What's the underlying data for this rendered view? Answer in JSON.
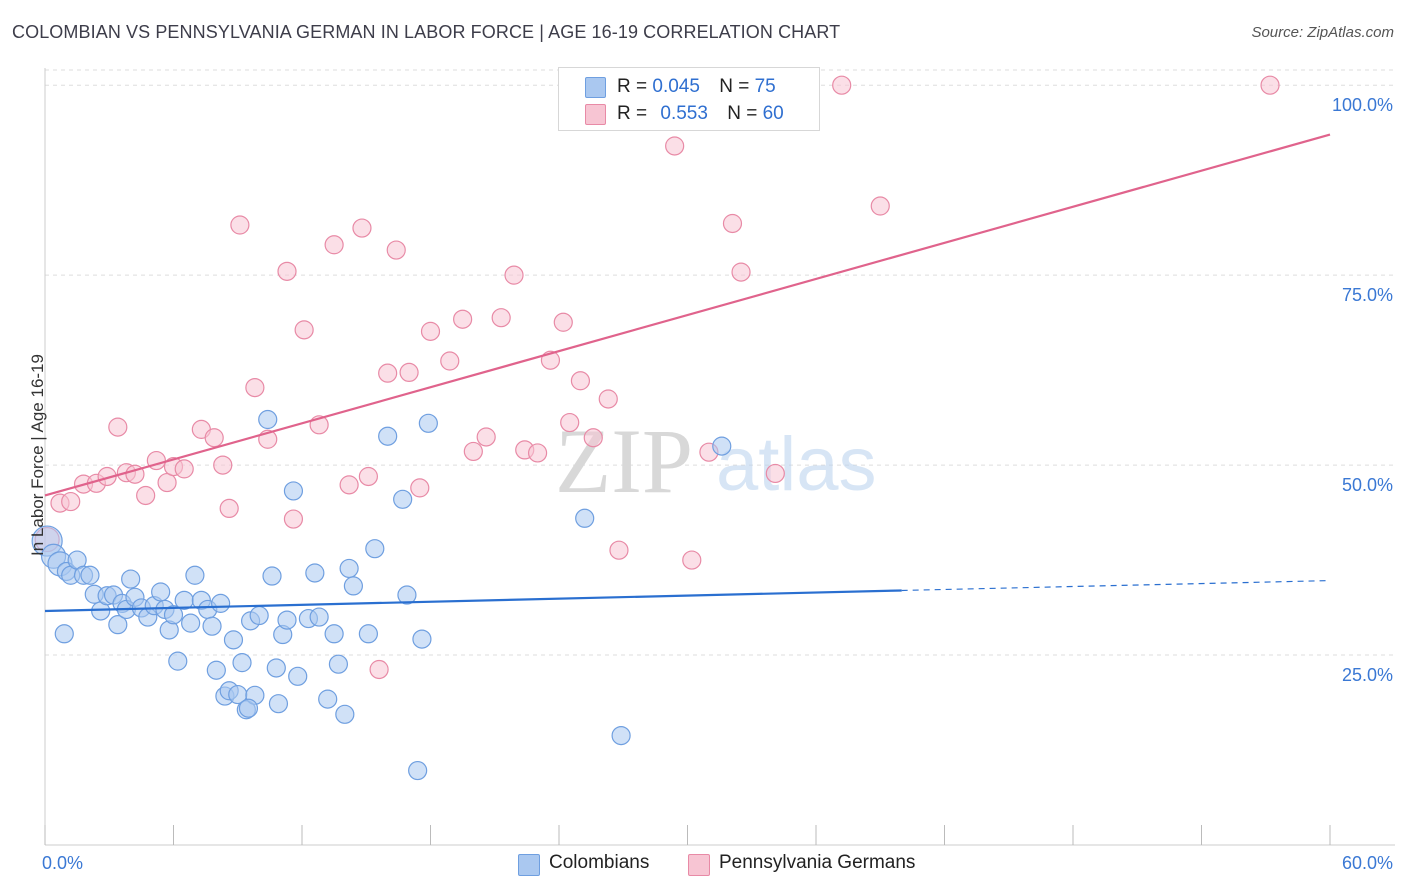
{
  "title": "COLOMBIAN VS PENNSYLVANIA GERMAN IN LABOR FORCE | AGE 16-19 CORRELATION CHART",
  "source": "Source: ZipAtlas.com",
  "watermark": {
    "zip": "ZIP",
    "atlas": "atlas"
  },
  "legend": {
    "r_label": "R =",
    "n_label": "N =",
    "series1": {
      "r": "0.045",
      "n": "75"
    },
    "series2": {
      "r": "0.553",
      "n": "60"
    }
  },
  "colors": {
    "blue_fill": "#aac8f0",
    "blue_stroke": "#6f9fe0",
    "blue_line": "#2a6fd0",
    "pink_fill": "#f7c5d3",
    "pink_stroke": "#e88aa6",
    "pink_line": "#e0638c",
    "tick_label": "#3a78d4",
    "grid": "#dddddd"
  },
  "chart_data": {
    "type": "scatter",
    "title": "COLOMBIAN VS PENNSYLVANIA GERMAN IN LABOR FORCE | AGE 16-19 CORRELATION CHART",
    "xlabel": "",
    "ylabel": "In Labor Force | Age 16-19",
    "xlim": [
      0,
      60
    ],
    "ylim": [
      0,
      102
    ],
    "x_tick_labels": [
      "0.0%",
      "60.0%"
    ],
    "y_ticks": [
      25,
      50,
      75,
      100
    ],
    "y_tick_labels": [
      "25.0%",
      "50.0%",
      "75.0%",
      "100.0%"
    ],
    "grid": true,
    "legend_position": "bottom",
    "series": [
      {
        "name": "Colombians",
        "r": 0.045,
        "n": 75,
        "trend": {
          "x0": 0,
          "y0": 30.8,
          "x1": 40,
          "y1": 33.5,
          "dashed_to_x": 60,
          "dashed_to_y": 34.8
        },
        "points": [
          [
            0.1,
            40.0,
            3
          ],
          [
            0.4,
            38.0,
            2
          ],
          [
            0.7,
            37.0,
            2
          ],
          [
            1.0,
            36.0,
            1
          ],
          [
            1.2,
            35.5,
            1
          ],
          [
            1.5,
            37.5,
            1
          ],
          [
            1.8,
            35.5,
            1
          ],
          [
            2.1,
            35.5,
            1
          ],
          [
            0.9,
            27.8,
            1
          ],
          [
            2.3,
            33.0,
            1
          ],
          [
            2.6,
            30.8,
            1
          ],
          [
            2.9,
            32.8,
            1
          ],
          [
            3.2,
            32.9,
            1
          ],
          [
            3.4,
            29.0,
            1
          ],
          [
            3.6,
            31.8,
            1
          ],
          [
            3.8,
            31.0,
            1
          ],
          [
            4.0,
            35.0,
            1
          ],
          [
            4.2,
            32.6,
            1
          ],
          [
            4.5,
            31.2,
            1
          ],
          [
            4.8,
            30.0,
            1
          ],
          [
            5.1,
            31.5,
            1
          ],
          [
            5.4,
            33.3,
            1
          ],
          [
            5.6,
            31.0,
            1
          ],
          [
            5.8,
            28.3,
            1
          ],
          [
            6.0,
            30.3,
            1
          ],
          [
            6.2,
            24.2,
            1
          ],
          [
            6.5,
            32.2,
            1
          ],
          [
            6.8,
            29.2,
            1
          ],
          [
            7.0,
            35.5,
            1
          ],
          [
            7.3,
            32.2,
            1
          ],
          [
            7.6,
            31.0,
            1
          ],
          [
            7.8,
            28.8,
            1
          ],
          [
            8.0,
            23.0,
            1
          ],
          [
            8.2,
            31.8,
            1
          ],
          [
            8.4,
            19.6,
            1
          ],
          [
            8.6,
            20.3,
            1
          ],
          [
            8.8,
            27.0,
            1
          ],
          [
            9.0,
            19.8,
            1
          ],
          [
            9.2,
            24.0,
            1
          ],
          [
            9.4,
            17.8,
            1
          ],
          [
            9.6,
            29.5,
            1
          ],
          [
            9.8,
            19.7,
            1
          ],
          [
            10.0,
            30.2,
            1
          ],
          [
            9.5,
            18.0,
            1
          ],
          [
            10.4,
            56.0,
            1
          ],
          [
            10.6,
            35.4,
            1
          ],
          [
            10.8,
            23.3,
            1
          ],
          [
            10.9,
            18.6,
            1
          ],
          [
            11.1,
            27.7,
            1
          ],
          [
            11.3,
            29.6,
            1
          ],
          [
            11.6,
            46.6,
            1
          ],
          [
            11.8,
            22.2,
            1
          ],
          [
            12.3,
            29.8,
            1
          ],
          [
            12.6,
            35.8,
            1
          ],
          [
            12.8,
            30.0,
            1
          ],
          [
            13.2,
            19.2,
            1
          ],
          [
            13.5,
            27.8,
            1
          ],
          [
            13.7,
            23.8,
            1
          ],
          [
            14.0,
            17.2,
            1
          ],
          [
            14.2,
            36.4,
            1
          ],
          [
            14.4,
            34.1,
            1
          ],
          [
            15.1,
            27.8,
            1
          ],
          [
            15.4,
            39.0,
            1
          ],
          [
            16.0,
            53.8,
            1
          ],
          [
            16.7,
            45.5,
            1
          ],
          [
            16.9,
            32.9,
            1
          ],
          [
            17.4,
            9.8,
            1
          ],
          [
            17.6,
            27.1,
            1
          ],
          [
            17.9,
            55.5,
            1
          ],
          [
            25.2,
            43.0,
            1
          ],
          [
            26.9,
            14.4,
            1
          ],
          [
            31.6,
            52.5,
            1
          ]
        ]
      },
      {
        "name": "Pennsylvania Germans",
        "r": 0.553,
        "n": 60,
        "trend": {
          "x0": 0,
          "y0": 46.0,
          "x1": 60,
          "y1": 93.5
        },
        "points": [
          [
            0.1,
            40.2,
            2
          ],
          [
            0.7,
            45.0,
            1
          ],
          [
            1.2,
            45.2,
            1
          ],
          [
            1.8,
            47.5,
            1
          ],
          [
            2.4,
            47.6,
            1
          ],
          [
            2.9,
            48.5,
            1
          ],
          [
            3.4,
            55.0,
            1
          ],
          [
            3.8,
            49.0,
            1
          ],
          [
            4.2,
            48.8,
            1
          ],
          [
            4.7,
            46.0,
            1
          ],
          [
            5.2,
            50.6,
            1
          ],
          [
            5.7,
            47.7,
            1
          ],
          [
            6.0,
            49.8,
            1
          ],
          [
            6.5,
            49.5,
            1
          ],
          [
            7.3,
            54.7,
            1
          ],
          [
            7.9,
            53.6,
            1
          ],
          [
            8.3,
            50.0,
            1
          ],
          [
            8.6,
            44.3,
            1
          ],
          [
            9.1,
            81.6,
            1
          ],
          [
            9.8,
            60.2,
            1
          ],
          [
            10.4,
            53.4,
            1
          ],
          [
            11.3,
            75.5,
            1
          ],
          [
            11.6,
            42.9,
            1
          ],
          [
            12.1,
            67.8,
            1
          ],
          [
            12.8,
            55.3,
            1
          ],
          [
            13.5,
            79.0,
            1
          ],
          [
            14.2,
            47.4,
            1
          ],
          [
            14.8,
            81.2,
            1
          ],
          [
            15.1,
            48.5,
            1
          ],
          [
            15.6,
            23.1,
            1
          ],
          [
            16.0,
            62.1,
            1
          ],
          [
            16.4,
            78.3,
            1
          ],
          [
            17.0,
            62.2,
            1
          ],
          [
            17.5,
            47.0,
            1
          ],
          [
            18.0,
            67.6,
            1
          ],
          [
            18.9,
            63.7,
            1
          ],
          [
            19.5,
            69.2,
            1
          ],
          [
            20.0,
            51.8,
            1
          ],
          [
            20.6,
            53.7,
            1
          ],
          [
            21.3,
            69.4,
            1
          ],
          [
            21.9,
            75.0,
            1
          ],
          [
            22.4,
            52.0,
            1
          ],
          [
            23.0,
            51.6,
            1
          ],
          [
            23.6,
            63.8,
            1
          ],
          [
            24.2,
            68.8,
            1
          ],
          [
            24.5,
            55.6,
            1
          ],
          [
            25.0,
            61.1,
            1
          ],
          [
            25.6,
            53.6,
            1
          ],
          [
            26.3,
            58.7,
            1
          ],
          [
            26.8,
            38.8,
            1
          ],
          [
            28.0,
            100.0,
            1
          ],
          [
            29.4,
            92.0,
            1
          ],
          [
            30.2,
            37.5,
            1
          ],
          [
            31.0,
            51.7,
            1
          ],
          [
            32.1,
            81.8,
            1
          ],
          [
            32.5,
            75.4,
            1
          ],
          [
            34.1,
            48.9,
            1
          ],
          [
            37.2,
            100.0,
            1
          ],
          [
            39.0,
            84.1,
            1
          ],
          [
            57.2,
            100.0,
            1
          ]
        ]
      }
    ]
  }
}
